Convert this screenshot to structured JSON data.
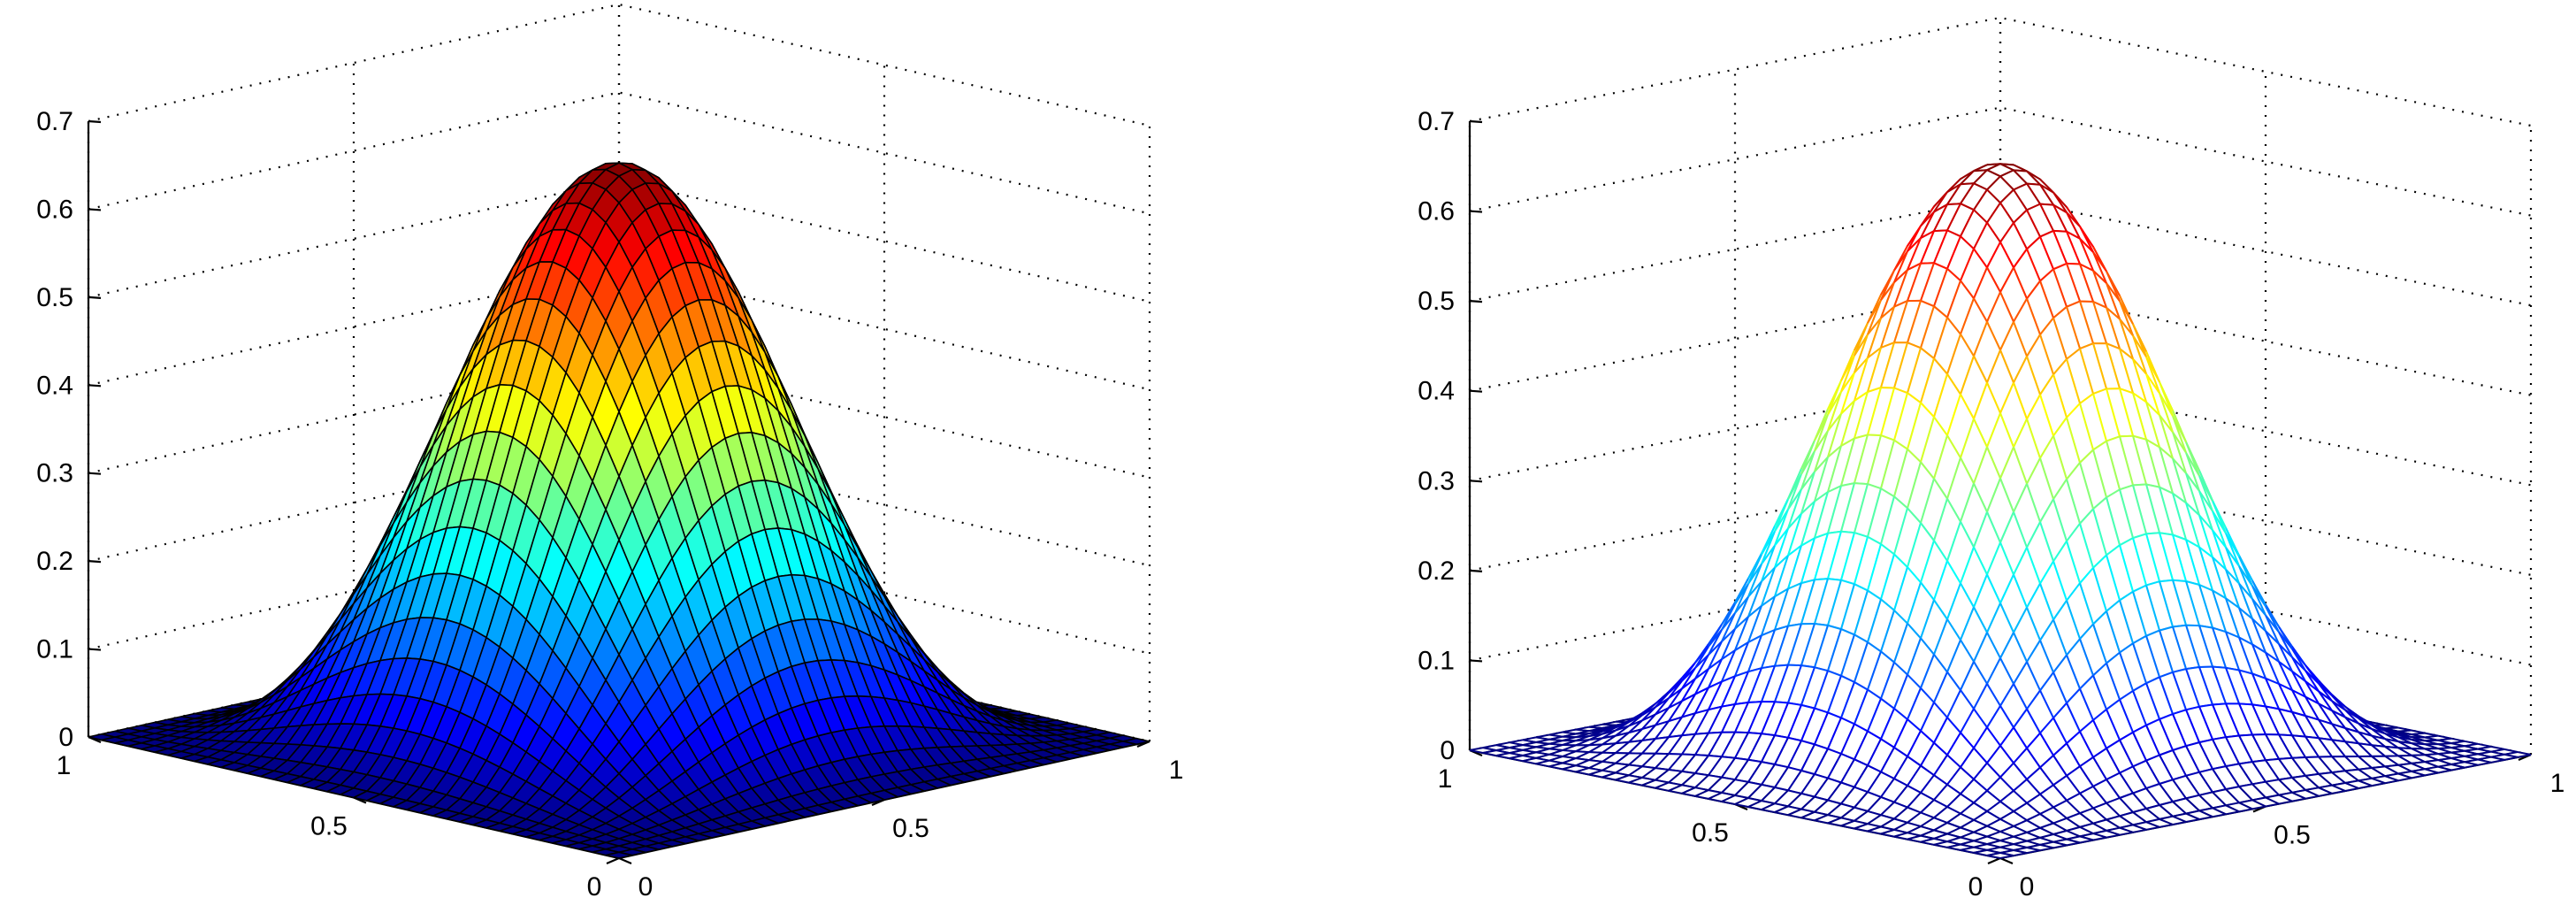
{
  "chart_data": [
    {
      "type": "surface",
      "render": "surf",
      "function": "(16*x*(1-x)*y*(1-y))^? scaled — sampled as bump surface",
      "grid_n": 40,
      "peak_z": 0.655,
      "zlim": [
        0,
        0.7
      ],
      "xlim": [
        0,
        1
      ],
      "ylim": [
        0,
        1
      ],
      "z_ticks": [
        "0",
        "0.1",
        "0.2",
        "0.3",
        "0.4",
        "0.5",
        "0.6",
        "0.7"
      ],
      "x_ticks": [
        "0",
        "0.5",
        "1"
      ],
      "y_ticks": [
        "0",
        "0.5",
        "1"
      ],
      "colormap": "jet",
      "edge_color": "#000000",
      "grid": true,
      "title": "",
      "xlabel": "",
      "ylabel": "",
      "zlabel": ""
    },
    {
      "type": "surface",
      "render": "mesh",
      "grid_n": 40,
      "peak_z": 0.655,
      "zlim": [
        0,
        0.7
      ],
      "xlim": [
        0,
        1
      ],
      "ylim": [
        0,
        1
      ],
      "z_ticks": [
        "0",
        "0.1",
        "0.2",
        "0.3",
        "0.4",
        "0.5",
        "0.6",
        "0.7"
      ],
      "x_ticks": [
        "0",
        "0.5",
        "1"
      ],
      "y_ticks": [
        "0",
        "0.5",
        "1"
      ],
      "colormap": "jet",
      "grid": true,
      "title": "",
      "xlabel": "",
      "ylabel": "",
      "zlabel": ""
    }
  ]
}
